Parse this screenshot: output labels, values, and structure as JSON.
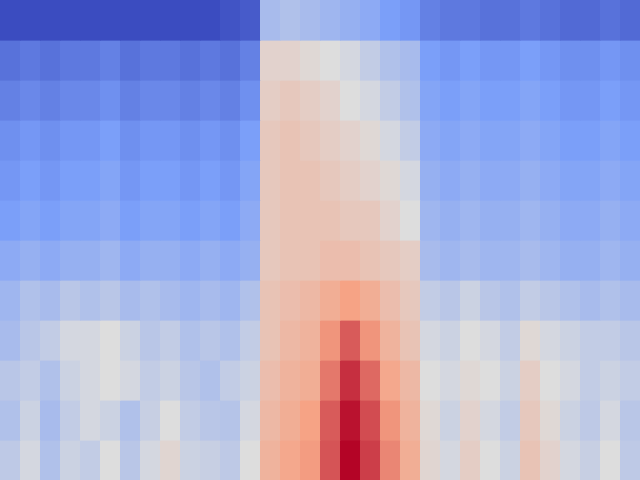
{
  "chart_data": {
    "type": "heatmap",
    "tick_labels": false,
    "x": [
      0,
      1,
      2,
      3,
      4,
      5,
      6,
      7,
      8,
      9,
      10,
      11,
      12,
      13,
      14,
      15,
      16,
      17,
      18,
      19,
      20,
      21,
      22,
      23,
      24,
      25,
      26,
      27,
      28,
      29,
      30,
      31
    ],
    "y": [
      0,
      1,
      2,
      3,
      4,
      5,
      6,
      7,
      8,
      9,
      10,
      11
    ],
    "xlim": [
      -0.5,
      31.5
    ],
    "ylim": [
      -0.5,
      11.5
    ],
    "values": [
      [
        45,
        50,
        42,
        48,
        46,
        52,
        44,
        50,
        55,
        48,
        47,
        45,
        52,
        68,
        72,
        75,
        85,
        96,
        88,
        78,
        70,
        55,
        50,
        58,
        52,
        48,
        62,
        56,
        50,
        47,
        52,
        45
      ],
      [
        42,
        48,
        40,
        46,
        50,
        48,
        42,
        47,
        52,
        46,
        44,
        43,
        50,
        66,
        70,
        74,
        84,
        94,
        86,
        76,
        68,
        54,
        48,
        56,
        50,
        46,
        60,
        54,
        48,
        45,
        50,
        44
      ],
      [
        44,
        46,
        42,
        48,
        50,
        52,
        50,
        46,
        48,
        44,
        42,
        46,
        48,
        64,
        68,
        70,
        80,
        90,
        82,
        72,
        66,
        52,
        50,
        54,
        52,
        48,
        58,
        52,
        50,
        46,
        48,
        46
      ],
      [
        40,
        44,
        46,
        50,
        50,
        52,
        48,
        44,
        46,
        42,
        44,
        42,
        46,
        62,
        66,
        68,
        76,
        84,
        76,
        68,
        62,
        50,
        48,
        52,
        50,
        46,
        54,
        50,
        48,
        46,
        46,
        44
      ],
      [
        38,
        42,
        40,
        44,
        42,
        44,
        40,
        42,
        40,
        38,
        40,
        38,
        42,
        62,
        64,
        66,
        70,
        74,
        70,
        64,
        60,
        46,
        44,
        48,
        44,
        42,
        46,
        44,
        42,
        40,
        42,
        40
      ],
      [
        34,
        36,
        34,
        36,
        36,
        38,
        34,
        36,
        36,
        34,
        36,
        34,
        36,
        60,
        62,
        62,
        64,
        64,
        62,
        60,
        58,
        40,
        38,
        40,
        38,
        38,
        40,
        38,
        36,
        36,
        38,
        36
      ],
      [
        30,
        32,
        30,
        32,
        32,
        34,
        30,
        32,
        32,
        30,
        32,
        30,
        34,
        60,
        62,
        62,
        62,
        60,
        60,
        56,
        52,
        38,
        36,
        38,
        36,
        36,
        38,
        36,
        34,
        34,
        36,
        34
      ],
      [
        28,
        30,
        28,
        30,
        30,
        32,
        28,
        30,
        30,
        28,
        30,
        28,
        32,
        60,
        62,
        62,
        60,
        58,
        56,
        54,
        50,
        36,
        34,
        36,
        34,
        34,
        36,
        34,
        32,
        32,
        34,
        32
      ],
      [
        26,
        28,
        26,
        28,
        28,
        30,
        26,
        28,
        28,
        26,
        28,
        26,
        30,
        60,
        62,
        60,
        58,
        56,
        54,
        50,
        46,
        34,
        32,
        34,
        32,
        32,
        34,
        32,
        30,
        30,
        32,
        30
      ],
      [
        22,
        24,
        22,
        24,
        24,
        26,
        22,
        24,
        24,
        22,
        24,
        22,
        26,
        58,
        60,
        58,
        56,
        52,
        50,
        46,
        42,
        32,
        30,
        32,
        30,
        30,
        32,
        30,
        28,
        28,
        30,
        28
      ],
      [
        18,
        20,
        18,
        20,
        20,
        22,
        18,
        20,
        20,
        18,
        20,
        18,
        22,
        56,
        56,
        54,
        52,
        50,
        46,
        42,
        40,
        30,
        28,
        30,
        28,
        28,
        30,
        28,
        26,
        26,
        28,
        26
      ],
      [
        8,
        8,
        8,
        8,
        8,
        8,
        8,
        8,
        8,
        8,
        8,
        10,
        12,
        40,
        42,
        40,
        38,
        36,
        34,
        30,
        28,
        22,
        20,
        20,
        18,
        18,
        20,
        18,
        16,
        16,
        18,
        16
      ]
    ]
  }
}
